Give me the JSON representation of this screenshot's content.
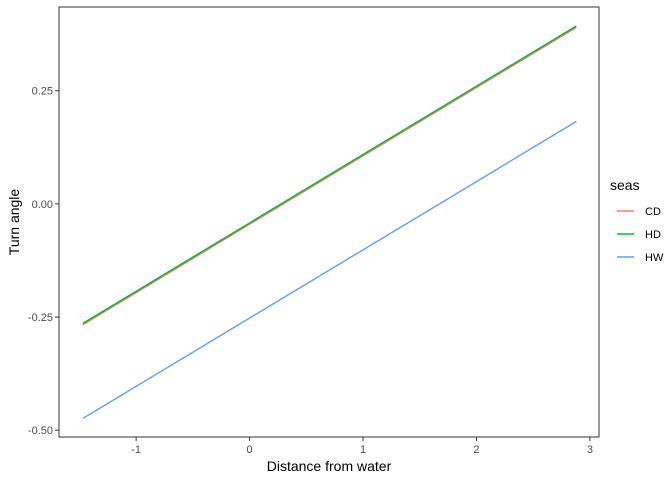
{
  "chart_data": {
    "type": "line",
    "title": "",
    "xlabel": "Distance from water",
    "ylabel": "Turn angle",
    "xlim": [
      -1.68,
      3.08
    ],
    "ylim": [
      -0.515,
      0.435
    ],
    "x_ticks": [
      -1,
      0,
      1,
      2,
      3
    ],
    "x_tick_labels": [
      "-1",
      "0",
      "1",
      "2",
      "3"
    ],
    "y_ticks": [
      -0.5,
      -0.25,
      0.0,
      0.25
    ],
    "y_tick_labels": [
      "-0.50",
      "-0.25",
      "0.00",
      "0.25"
    ],
    "grid": false,
    "legend": {
      "title": "seas",
      "position": "right"
    },
    "series": [
      {
        "name": "CD",
        "color": "#F8766D",
        "x": [
          -1.47,
          2.88
        ],
        "y": [
          -0.267,
          0.39
        ]
      },
      {
        "name": "HD",
        "color": "#00BA38",
        "x": [
          -1.47,
          2.88
        ],
        "y": [
          -0.264,
          0.393
        ]
      },
      {
        "name": "HW",
        "color": "#619CFF",
        "x": [
          -1.47,
          2.88
        ],
        "y": [
          -0.474,
          0.182
        ]
      }
    ]
  }
}
